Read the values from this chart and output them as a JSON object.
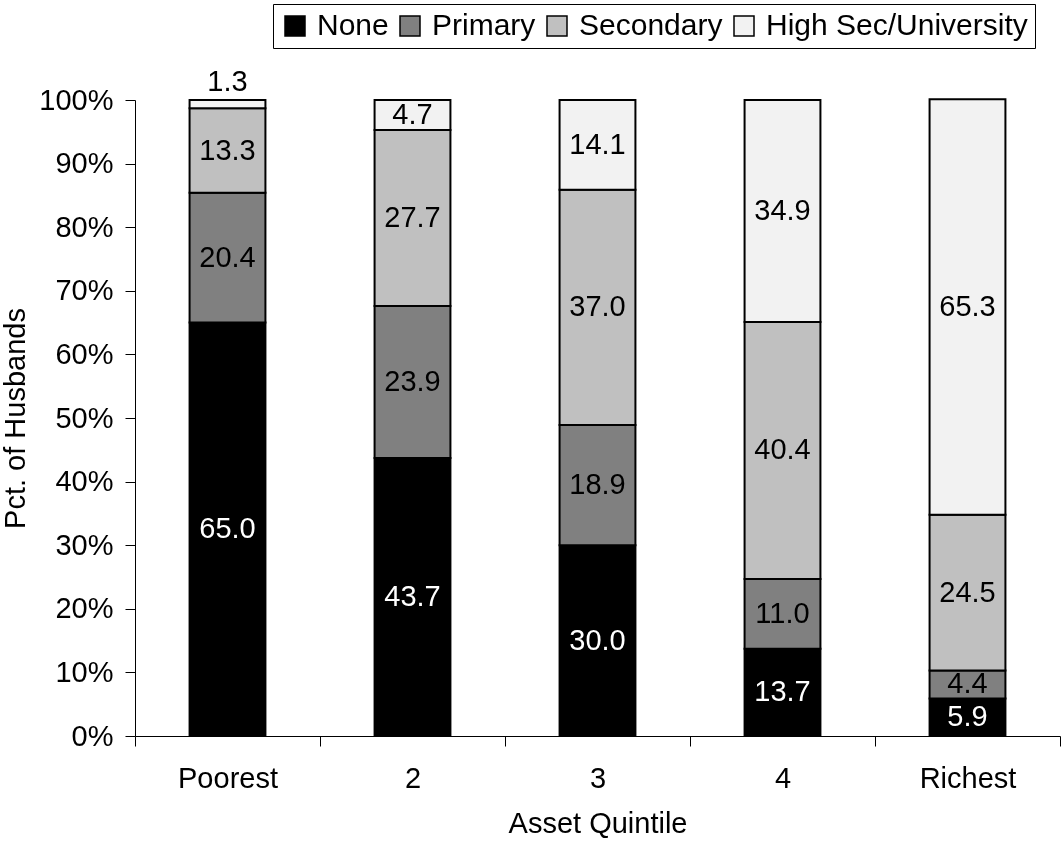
{
  "chart_data": {
    "type": "bar",
    "stacked": true,
    "categories": [
      "Poorest",
      "2",
      "3",
      "4",
      "Richest"
    ],
    "xlabel": "Asset Quintile",
    "ylabel": "Pct. of Husbands",
    "ylim": [
      0,
      100
    ],
    "yticks": [
      {
        "value": 0,
        "label": "0%"
      },
      {
        "value": 10,
        "label": "10%"
      },
      {
        "value": 20,
        "label": "20%"
      },
      {
        "value": 30,
        "label": "30%"
      },
      {
        "value": 40,
        "label": "40%"
      },
      {
        "value": 50,
        "label": "50%"
      },
      {
        "value": 60,
        "label": "60%"
      },
      {
        "value": 70,
        "label": "70%"
      },
      {
        "value": 80,
        "label": "80%"
      },
      {
        "value": 90,
        "label": "90%"
      },
      {
        "value": 100,
        "label": "100%"
      }
    ],
    "series": [
      {
        "name": "None",
        "color": "#000000",
        "values": [
          65.0,
          43.7,
          30.0,
          13.7,
          5.9
        ],
        "value_labels": [
          "65.0",
          "43.7",
          "30.0",
          "13.7",
          "5.9"
        ]
      },
      {
        "name": "Primary",
        "color": "#808080",
        "values": [
          20.4,
          23.9,
          18.9,
          11.0,
          4.4
        ],
        "value_labels": [
          "20.4",
          "23.9",
          "18.9",
          "11.0",
          "4.4"
        ]
      },
      {
        "name": "Secondary",
        "color": "#c0c0c0",
        "values": [
          13.3,
          27.7,
          37.0,
          40.4,
          24.5
        ],
        "value_labels": [
          "13.3",
          "27.7",
          "37.0",
          "40.4",
          "24.5"
        ]
      },
      {
        "name": "High Sec/University",
        "color": "#f2f2f2",
        "values": [
          1.3,
          4.7,
          14.1,
          34.9,
          65.3
        ],
        "value_labels": [
          "1.3",
          "4.7",
          "14.1",
          "34.9",
          "65.3"
        ]
      }
    ],
    "grid": false,
    "legend": "top right"
  }
}
